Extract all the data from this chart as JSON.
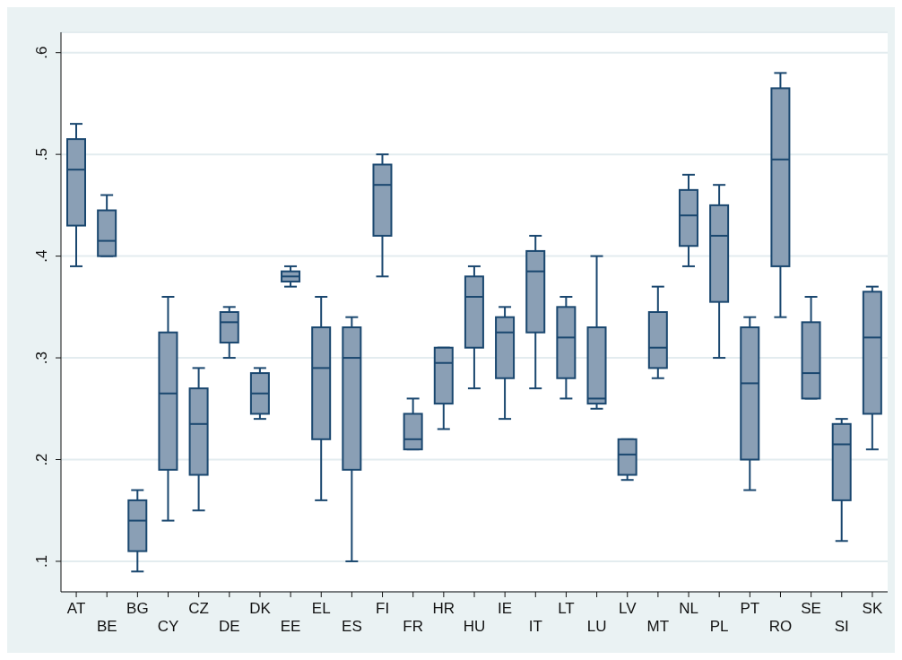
{
  "chart_data": {
    "type": "box",
    "categories": [
      "AT",
      "BE",
      "BG",
      "CY",
      "CZ",
      "DE",
      "DK",
      "EE",
      "EL",
      "ES",
      "FI",
      "FR",
      "HR",
      "HU",
      "IE",
      "IT",
      "LT",
      "LU",
      "LV",
      "MT",
      "NL",
      "PL",
      "PT",
      "RO",
      "SE",
      "SI",
      "SK"
    ],
    "color": "#8a9fb5",
    "boxes": [
      {
        "low": 0.39,
        "q1": 0.43,
        "median": 0.485,
        "q3": 0.515,
        "high": 0.53
      },
      {
        "low": 0.4,
        "q1": 0.4,
        "median": 0.415,
        "q3": 0.445,
        "high": 0.46
      },
      {
        "low": 0.09,
        "q1": 0.11,
        "median": 0.14,
        "q3": 0.16,
        "high": 0.17
      },
      {
        "low": 0.14,
        "q1": 0.19,
        "median": 0.265,
        "q3": 0.325,
        "high": 0.36
      },
      {
        "low": 0.15,
        "q1": 0.185,
        "median": 0.235,
        "q3": 0.27,
        "high": 0.29
      },
      {
        "low": 0.3,
        "q1": 0.315,
        "median": 0.335,
        "q3": 0.345,
        "high": 0.35
      },
      {
        "low": 0.24,
        "q1": 0.245,
        "median": 0.265,
        "q3": 0.285,
        "high": 0.29
      },
      {
        "low": 0.37,
        "q1": 0.375,
        "median": 0.38,
        "q3": 0.385,
        "high": 0.39
      },
      {
        "low": 0.16,
        "q1": 0.22,
        "median": 0.29,
        "q3": 0.33,
        "high": 0.36
      },
      {
        "low": 0.1,
        "q1": 0.19,
        "median": 0.3,
        "q3": 0.33,
        "high": 0.34
      },
      {
        "low": 0.38,
        "q1": 0.42,
        "median": 0.47,
        "q3": 0.49,
        "high": 0.5
      },
      {
        "low": 0.21,
        "q1": 0.21,
        "median": 0.22,
        "q3": 0.245,
        "high": 0.26
      },
      {
        "low": 0.23,
        "q1": 0.255,
        "median": 0.295,
        "q3": 0.31,
        "high": 0.31
      },
      {
        "low": 0.27,
        "q1": 0.31,
        "median": 0.36,
        "q3": 0.38,
        "high": 0.39
      },
      {
        "low": 0.24,
        "q1": 0.28,
        "median": 0.325,
        "q3": 0.34,
        "high": 0.35
      },
      {
        "low": 0.27,
        "q1": 0.325,
        "median": 0.385,
        "q3": 0.405,
        "high": 0.42
      },
      {
        "low": 0.26,
        "q1": 0.28,
        "median": 0.32,
        "q3": 0.35,
        "high": 0.36
      },
      {
        "low": 0.25,
        "q1": 0.255,
        "median": 0.26,
        "q3": 0.33,
        "high": 0.4
      },
      {
        "low": 0.18,
        "q1": 0.185,
        "median": 0.205,
        "q3": 0.22,
        "high": 0.22
      },
      {
        "low": 0.28,
        "q1": 0.29,
        "median": 0.31,
        "q3": 0.345,
        "high": 0.37
      },
      {
        "low": 0.39,
        "q1": 0.41,
        "median": 0.44,
        "q3": 0.465,
        "high": 0.48
      },
      {
        "low": 0.3,
        "q1": 0.355,
        "median": 0.42,
        "q3": 0.45,
        "high": 0.47
      },
      {
        "low": 0.17,
        "q1": 0.2,
        "median": 0.275,
        "q3": 0.33,
        "high": 0.34
      },
      {
        "low": 0.34,
        "q1": 0.39,
        "median": 0.495,
        "q3": 0.565,
        "high": 0.58
      },
      {
        "low": 0.26,
        "q1": 0.26,
        "median": 0.285,
        "q3": 0.335,
        "high": 0.36
      },
      {
        "low": 0.12,
        "q1": 0.16,
        "median": 0.215,
        "q3": 0.235,
        "high": 0.24
      },
      {
        "low": 0.21,
        "q1": 0.245,
        "median": 0.32,
        "q3": 0.365,
        "high": 0.37
      }
    ],
    "ylim": [
      0.07,
      0.62
    ],
    "yticks": [
      {
        "value": 0.1,
        "label": ".1"
      },
      {
        "value": 0.2,
        "label": ".2"
      },
      {
        "value": 0.3,
        "label": ".3"
      },
      {
        "value": 0.4,
        "label": ".4"
      },
      {
        "value": 0.5,
        "label": ".5"
      },
      {
        "value": 0.6,
        "label": ".6"
      }
    ],
    "grid": "y"
  }
}
